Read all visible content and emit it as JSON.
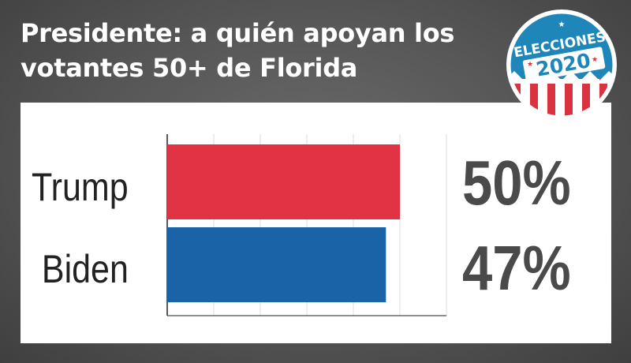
{
  "header": {
    "title_line1": "Presidente: a quién apoyan los",
    "title_line2": "votantes 50+ de Florida"
  },
  "badge": {
    "line1": "ELECCIONES",
    "line2": "2020",
    "icon": "elecciones-2020-badge-icon"
  },
  "chart_data": {
    "type": "bar",
    "orientation": "horizontal",
    "categories": [
      "Trump",
      "Biden"
    ],
    "values": [
      50,
      47
    ],
    "value_labels": [
      "50%",
      "47%"
    ],
    "colors": [
      "#e03444",
      "#1a63a6"
    ],
    "xlim": [
      0,
      60
    ],
    "grid": true
  }
}
